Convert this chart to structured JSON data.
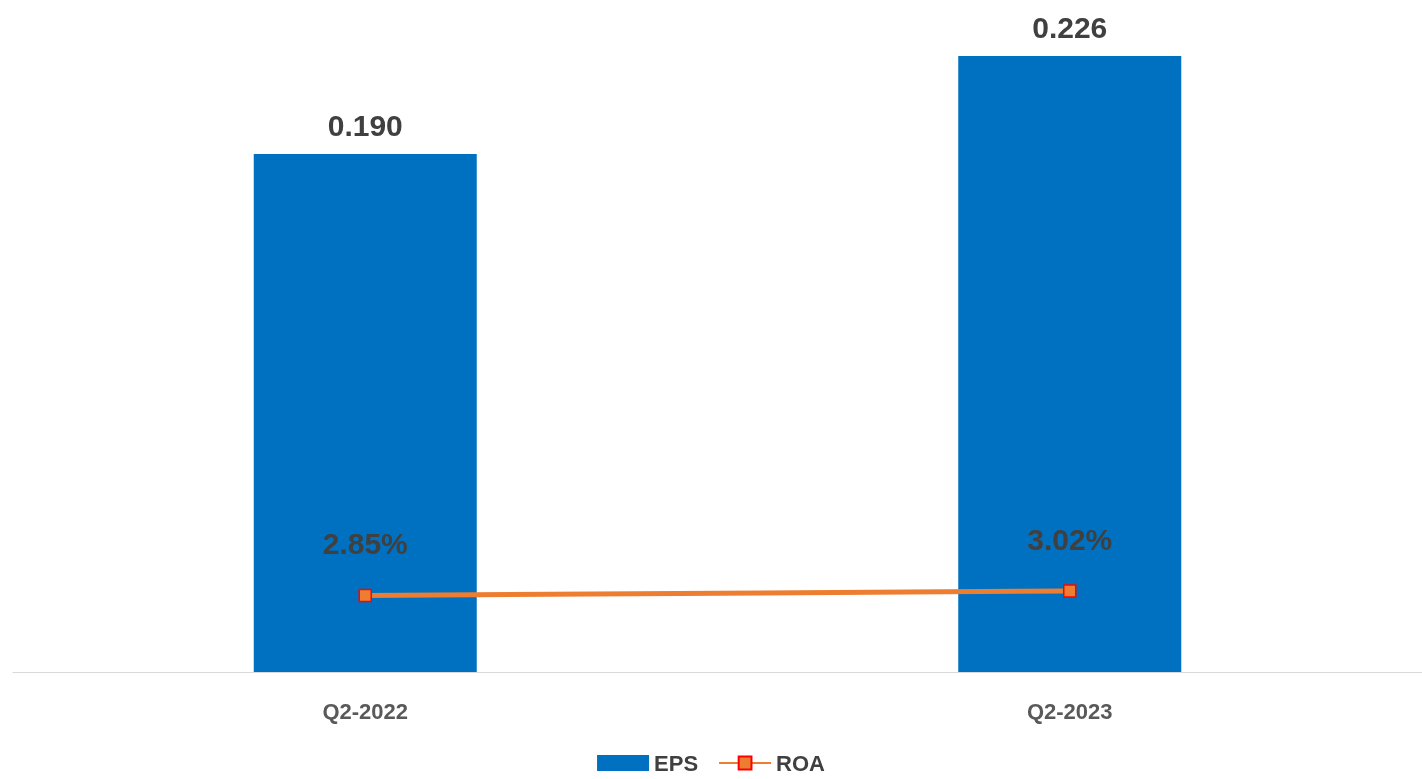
{
  "chart_data": {
    "type": "bar",
    "categories": [
      "Q2-2022",
      "Q2-2023"
    ],
    "series": [
      {
        "name": "EPS",
        "color": "#0070c0",
        "values": [
          0.19,
          0.226
        ],
        "value_labels": [
          "0.190",
          "0.226"
        ]
      },
      {
        "name": "ROA",
        "type": "line",
        "axis": "y2",
        "color": "#ed7d31",
        "marker": "square",
        "values": [
          2.85,
          3.02
        ],
        "value_labels": [
          "2.85%",
          "3.02%"
        ]
      }
    ],
    "tick_labels": "x",
    "grid": false,
    "legend": "bottom"
  }
}
